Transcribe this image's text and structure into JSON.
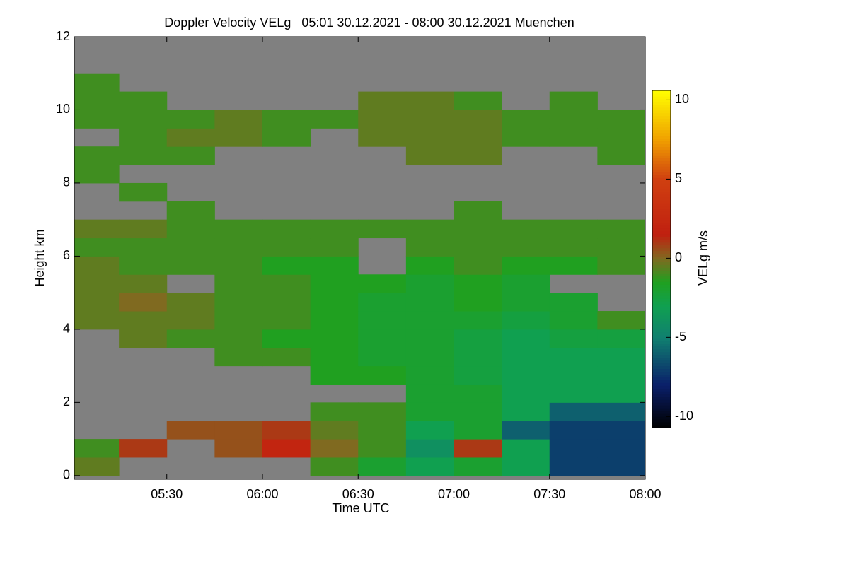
{
  "chart_data": {
    "type": "heatmap",
    "title": "Doppler Velocity VELg   05:01 30.12.2021 - 08:00 30.12.2021 Muenchen",
    "x_label": "Time UTC",
    "y_label": "Height km",
    "colorbar_label": "VELg m/s",
    "x_edges": [
      5.0167,
      5.25,
      5.5,
      5.75,
      6.0,
      6.25,
      6.5,
      6.75,
      7.0,
      7.25,
      7.5,
      7.75,
      8.0
    ],
    "y_edges": [
      0,
      0.5,
      1,
      1.5,
      2,
      2.5,
      3,
      3.5,
      4,
      4.5,
      5,
      5.5,
      6,
      6.5,
      7,
      7.5,
      8,
      8.5,
      9,
      9.5,
      10,
      10.5,
      11,
      11.5,
      12
    ],
    "values": [
      [
        -0.5,
        null,
        null,
        null,
        null,
        -1,
        -2,
        -3,
        -2,
        -3,
        -7,
        -7
      ],
      [
        -1,
        1,
        null,
        0.5,
        2,
        0,
        -1,
        -4,
        1,
        -3,
        -7,
        -7
      ],
      [
        null,
        null,
        0.5,
        0.5,
        1,
        -0.5,
        -1,
        -3,
        -2,
        -6,
        -7,
        -7
      ],
      [
        null,
        null,
        null,
        null,
        null,
        -1,
        -1,
        -2,
        -2,
        -3,
        -6,
        -6
      ],
      [
        null,
        null,
        null,
        null,
        null,
        null,
        null,
        -2,
        -2,
        -3,
        -3,
        -3
      ],
      [
        null,
        null,
        null,
        null,
        null,
        -1.5,
        -1.5,
        -2,
        -2.5,
        -3,
        -3,
        -3
      ],
      [
        null,
        null,
        null,
        -1,
        -1,
        -1.5,
        -2,
        -2,
        -2.5,
        -3,
        -3,
        -3
      ],
      [
        null,
        -0.5,
        -1,
        -1,
        -1.5,
        -1.5,
        -2,
        -2,
        -2.5,
        -3,
        -2.5,
        -2.5
      ],
      [
        -0.5,
        -0.5,
        -0.5,
        -1,
        -1,
        -1.5,
        -2,
        -2,
        -2,
        -2.5,
        -2,
        -1
      ],
      [
        -0.5,
        0,
        -0.5,
        -1,
        -1,
        -1.5,
        -2,
        -2,
        -1.5,
        -2,
        -2,
        null
      ],
      [
        -0.5,
        -0.5,
        null,
        -1,
        -1,
        -1.5,
        -1.5,
        -2,
        -1.5,
        -2,
        null,
        null
      ],
      [
        -0.5,
        -1,
        -1,
        -1,
        -1.5,
        -1.5,
        null,
        -1.5,
        -1,
        -1.5,
        -1.5,
        -1
      ],
      [
        -1,
        -1,
        -1,
        -1,
        -1,
        -1,
        null,
        -1,
        -1,
        -1,
        -1,
        -1
      ],
      [
        -0.5,
        -0.5,
        -1,
        -1,
        -1,
        -1,
        -1,
        -1,
        -1,
        -1,
        -1,
        -1
      ],
      [
        null,
        null,
        -1,
        null,
        null,
        null,
        null,
        null,
        -1,
        null,
        null,
        null
      ],
      [
        null,
        -1,
        null,
        null,
        null,
        null,
        null,
        null,
        null,
        null,
        null,
        null
      ],
      [
        -1,
        null,
        null,
        null,
        null,
        null,
        null,
        null,
        null,
        null,
        null,
        null
      ],
      [
        -1,
        -1,
        -1,
        null,
        null,
        null,
        null,
        -0.5,
        -0.5,
        null,
        null,
        -1
      ],
      [
        null,
        -1,
        -0.5,
        -0.5,
        -1,
        null,
        -0.5,
        -0.5,
        -0.5,
        -1,
        -1,
        -1
      ],
      [
        -1,
        -1,
        -1,
        -0.5,
        -1,
        -1,
        -0.5,
        -0.5,
        -0.5,
        -1,
        -1,
        -1
      ],
      [
        -1,
        -1,
        null,
        null,
        null,
        null,
        -0.5,
        -0.5,
        -1,
        null,
        -1,
        null
      ],
      [
        -1,
        null,
        null,
        null,
        null,
        null,
        null,
        null,
        null,
        null,
        null,
        null
      ],
      [
        null,
        null,
        null,
        null,
        null,
        null,
        null,
        null,
        null,
        null,
        null,
        null
      ],
      [
        null,
        null,
        null,
        null,
        null,
        null,
        null,
        null,
        null,
        null,
        null,
        null
      ]
    ],
    "background_color": "#808080",
    "colorscale": [
      [
        -10.7,
        "#000000"
      ],
      [
        -8,
        "#0a1f6a"
      ],
      [
        -5,
        "#108070"
      ],
      [
        -3,
        "#10a050"
      ],
      [
        -1.5,
        "#20a020"
      ],
      [
        0,
        "#806a20"
      ],
      [
        1.5,
        "#c02010"
      ],
      [
        5,
        "#d04010"
      ],
      [
        7.5,
        "#f0a000"
      ],
      [
        10.6,
        "#ffff00"
      ]
    ],
    "xlim": [
      5.0167,
      8.0
    ],
    "xticks": [
      {
        "value": 5.5,
        "label": "05:30"
      },
      {
        "value": 6.0,
        "label": "06:00"
      },
      {
        "value": 6.5,
        "label": "06:30"
      },
      {
        "value": 7.0,
        "label": "07:00"
      },
      {
        "value": 7.5,
        "label": "07:30"
      },
      {
        "value": 8.0,
        "label": "08:00"
      }
    ],
    "ylim": [
      -0.1,
      12
    ],
    "yticks": [
      0,
      2,
      4,
      6,
      8,
      10,
      12
    ],
    "clim": [
      -10.7,
      10.6
    ],
    "cticks": [
      -10,
      -5,
      0,
      5,
      10
    ]
  }
}
